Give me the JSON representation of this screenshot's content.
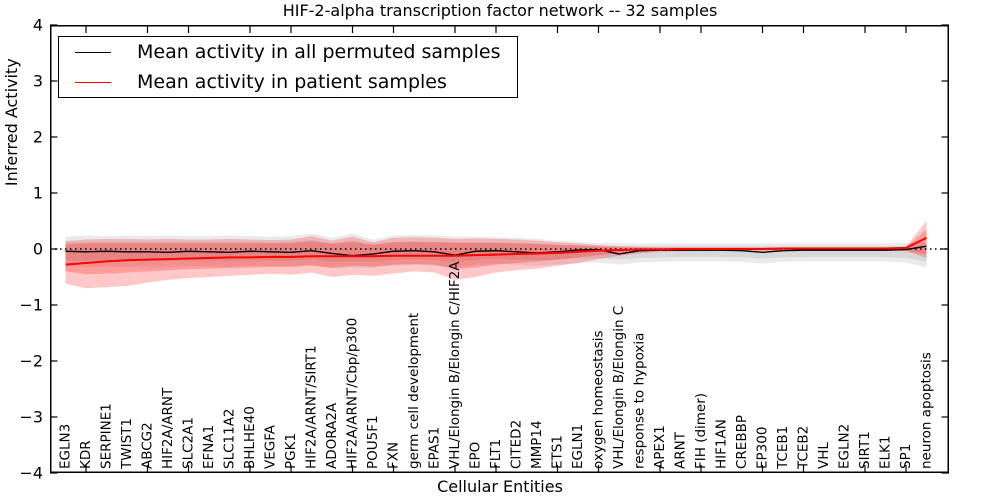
{
  "header": {
    "title": "HIF-2-alpha transcription factor network -- 32 samples"
  },
  "axes": {
    "xlabel": "Cellular Entities",
    "ylabel": "Inferred Activity"
  },
  "legend": {
    "items": [
      {
        "label": "Mean activity in all permuted samples",
        "color": "#000000"
      },
      {
        "label": "Mean activity in patient samples",
        "color": "#ff0000"
      }
    ]
  },
  "colors": {
    "permuted_line": "#000000",
    "patient_line": "#ff0000",
    "permuted_band": "#808080",
    "patient_band": "#ff0000",
    "frame": "#000000",
    "zero_line": "#000000"
  },
  "chart_data": {
    "type": "line",
    "title": "HIF-2-alpha transcription factor network -- 32 samples",
    "xlabel": "Cellular Entities",
    "ylabel": "Inferred Activity",
    "ylim": [
      -4,
      4
    ],
    "yticks": [
      -4,
      -3,
      -2,
      -1,
      0,
      1,
      2,
      3,
      4
    ],
    "grid": false,
    "zero_line_style": "dotted",
    "legend_position": "upper left",
    "categories": [
      "EGLN3",
      "KDR",
      "SERPINE1",
      "TWIST1",
      "ABCG2",
      "HIF2A/ARNT",
      "SLC2A1",
      "EFNA1",
      "SLC11A2",
      "BHLHE40",
      "VEGFA",
      "PGK1",
      "HIF2A/ARNT/SIRT1",
      "ADORA2A",
      "HIF2A/ARNT/Cbp/p300",
      "POU5F1",
      "FXN",
      "germ cell development",
      "EPAS1",
      "VHL/Elongin B/Elongin C/HIF2A",
      "EPO",
      "FLT1",
      "CITED2",
      "MMP14",
      "ETS1",
      "EGLN1",
      "oxygen homeostasis",
      "VHL/Elongin B/Elongin C",
      "response to hypoxia",
      "APEX1",
      "ARNT",
      "FIH (dimer)",
      "HIF1AN",
      "CREBBP",
      "EP300",
      "TCEB1",
      "TCEB2",
      "VHL",
      "EGLN2",
      "SIRT1",
      "ELK1",
      "SP1",
      "neuron apoptosis"
    ],
    "series": [
      {
        "name": "Mean activity in all permuted samples",
        "color": "#000000",
        "width": 1.4,
        "values": [
          -0.04,
          -0.05,
          -0.04,
          -0.05,
          -0.05,
          -0.06,
          -0.04,
          -0.05,
          -0.06,
          -0.04,
          -0.05,
          -0.06,
          -0.03,
          -0.08,
          -0.12,
          -0.09,
          -0.04,
          -0.03,
          -0.05,
          -0.11,
          -0.04,
          -0.03,
          -0.05,
          -0.07,
          -0.05,
          -0.02,
          -0.01,
          -0.09,
          -0.03,
          -0.02,
          -0.02,
          -0.02,
          -0.02,
          -0.03,
          -0.06,
          -0.03,
          -0.02,
          -0.02,
          -0.02,
          -0.02,
          -0.02,
          -0.01,
          0.05
        ]
      },
      {
        "name": "Mean activity in patient samples",
        "color": "#ff0000",
        "width": 2.0,
        "values": [
          -0.28,
          -0.25,
          -0.22,
          -0.2,
          -0.19,
          -0.18,
          -0.17,
          -0.16,
          -0.15,
          -0.15,
          -0.14,
          -0.14,
          -0.13,
          -0.13,
          -0.13,
          -0.13,
          -0.12,
          -0.12,
          -0.12,
          -0.12,
          -0.11,
          -0.1,
          -0.09,
          -0.08,
          -0.07,
          -0.05,
          -0.03,
          -0.02,
          -0.01,
          -0.01,
          0.0,
          0.0,
          0.0,
          0.0,
          0.0,
          0.01,
          0.01,
          0.01,
          0.01,
          0.01,
          0.01,
          0.02,
          0.2
        ]
      }
    ],
    "bands": [
      {
        "name": "permuted-band-outer",
        "color": "#808080",
        "opacity": 0.17,
        "hi": [
          0.22,
          0.24,
          0.23,
          0.24,
          0.23,
          0.24,
          0.23,
          0.23,
          0.24,
          0.23,
          0.22,
          0.23,
          0.28,
          0.2,
          0.27,
          0.17,
          0.24,
          0.25,
          0.24,
          0.22,
          0.22,
          0.21,
          0.2,
          0.18,
          0.15,
          0.13,
          0.11,
          0.1,
          0.1,
          0.1,
          0.1,
          0.1,
          0.1,
          0.1,
          0.1,
          0.1,
          0.1,
          0.1,
          0.1,
          0.1,
          0.1,
          0.11,
          0.11
        ],
        "lo": [
          -0.3,
          -0.32,
          -0.31,
          -0.32,
          -0.31,
          -0.32,
          -0.3,
          -0.31,
          -0.32,
          -0.3,
          -0.3,
          -0.31,
          -0.28,
          -0.35,
          -0.33,
          -0.34,
          -0.3,
          -0.28,
          -0.3,
          -0.34,
          -0.28,
          -0.27,
          -0.28,
          -0.3,
          -0.28,
          -0.25,
          -0.24,
          -0.28,
          -0.24,
          -0.23,
          -0.22,
          -0.22,
          -0.22,
          -0.23,
          -0.26,
          -0.23,
          -0.22,
          -0.22,
          -0.22,
          -0.22,
          -0.22,
          -0.24,
          -0.33
        ]
      },
      {
        "name": "permuted-band-inner",
        "color": "#808080",
        "opacity": 0.17,
        "hi": [
          0.12,
          0.13,
          0.13,
          0.13,
          0.13,
          0.13,
          0.13,
          0.13,
          0.13,
          0.13,
          0.12,
          0.13,
          0.16,
          0.11,
          0.15,
          0.09,
          0.13,
          0.14,
          0.13,
          0.12,
          0.12,
          0.12,
          0.11,
          0.1,
          0.08,
          0.07,
          0.06,
          0.05,
          0.05,
          0.05,
          0.05,
          0.05,
          0.05,
          0.05,
          0.05,
          0.05,
          0.05,
          0.05,
          0.05,
          0.05,
          0.05,
          0.06,
          0.06
        ],
        "lo": [
          -0.2,
          -0.21,
          -0.2,
          -0.21,
          -0.2,
          -0.21,
          -0.2,
          -0.2,
          -0.21,
          -0.2,
          -0.2,
          -0.2,
          -0.18,
          -0.23,
          -0.22,
          -0.22,
          -0.2,
          -0.18,
          -0.2,
          -0.23,
          -0.19,
          -0.18,
          -0.19,
          -0.2,
          -0.19,
          -0.17,
          -0.16,
          -0.19,
          -0.16,
          -0.15,
          -0.14,
          -0.14,
          -0.14,
          -0.15,
          -0.17,
          -0.15,
          -0.14,
          -0.14,
          -0.14,
          -0.14,
          -0.14,
          -0.16,
          -0.22
        ]
      },
      {
        "name": "patient-band-outer",
        "color": "#ff0000",
        "opacity": 0.22,
        "hi": [
          0.14,
          0.17,
          0.18,
          0.18,
          0.17,
          0.18,
          0.17,
          0.17,
          0.18,
          0.17,
          0.16,
          0.17,
          0.23,
          0.15,
          0.22,
          0.12,
          0.2,
          0.21,
          0.2,
          0.18,
          0.19,
          0.18,
          0.17,
          0.15,
          0.12,
          0.1,
          0.07,
          0.05,
          0.04,
          0.03,
          0.03,
          0.03,
          0.03,
          0.03,
          0.03,
          0.03,
          0.03,
          0.03,
          0.03,
          0.03,
          0.03,
          0.04,
          0.5
        ],
        "lo": [
          -0.62,
          -0.7,
          -0.68,
          -0.66,
          -0.6,
          -0.55,
          -0.52,
          -0.5,
          -0.48,
          -0.46,
          -0.44,
          -0.46,
          -0.42,
          -0.5,
          -0.46,
          -0.48,
          -0.44,
          -0.4,
          -0.42,
          -0.55,
          -0.5,
          -0.42,
          -0.38,
          -0.35,
          -0.3,
          -0.25,
          -0.18,
          -0.12,
          -0.08,
          -0.05,
          -0.04,
          -0.04,
          -0.03,
          -0.03,
          -0.03,
          -0.03,
          -0.03,
          -0.03,
          -0.03,
          -0.03,
          -0.03,
          -0.04,
          -0.16
        ]
      },
      {
        "name": "patient-band-inner",
        "color": "#ff0000",
        "opacity": 0.22,
        "hi": [
          0.08,
          0.1,
          0.1,
          0.1,
          0.1,
          0.1,
          0.1,
          0.1,
          0.1,
          0.1,
          0.1,
          0.1,
          0.14,
          0.09,
          0.13,
          0.07,
          0.12,
          0.12,
          0.12,
          0.11,
          0.11,
          0.11,
          0.1,
          0.09,
          0.07,
          0.06,
          0.04,
          0.03,
          0.02,
          0.02,
          0.02,
          0.02,
          0.02,
          0.02,
          0.02,
          0.02,
          0.02,
          0.02,
          0.02,
          0.02,
          0.02,
          0.03,
          0.35
        ],
        "lo": [
          -0.4,
          -0.45,
          -0.44,
          -0.42,
          -0.4,
          -0.38,
          -0.36,
          -0.35,
          -0.34,
          -0.33,
          -0.32,
          -0.32,
          -0.3,
          -0.33,
          -0.3,
          -0.31,
          -0.28,
          -0.27,
          -0.28,
          -0.36,
          -0.33,
          -0.28,
          -0.25,
          -0.22,
          -0.19,
          -0.15,
          -0.11,
          -0.07,
          -0.05,
          -0.03,
          -0.02,
          -0.02,
          -0.02,
          -0.02,
          -0.02,
          -0.02,
          -0.02,
          -0.02,
          -0.02,
          -0.02,
          -0.02,
          -0.03,
          -0.1
        ]
      }
    ]
  }
}
